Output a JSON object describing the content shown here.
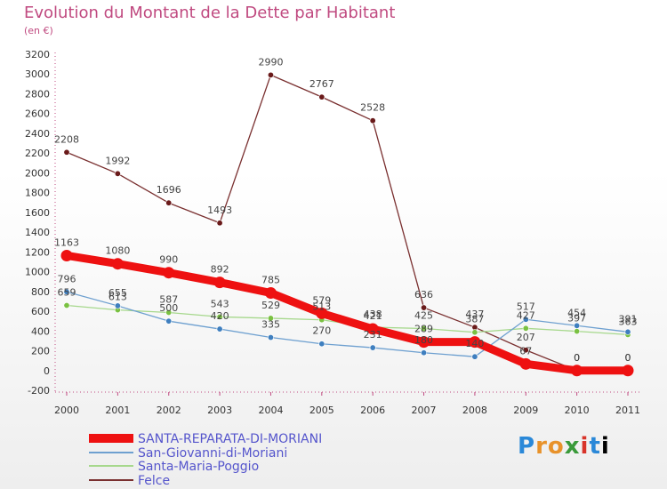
{
  "chart_data": {
    "type": "line",
    "title": "Evolution du Montant de la Dette par Habitant",
    "subtitle": "(en €)",
    "x": [
      "2000",
      "2001",
      "2002",
      "2003",
      "2004",
      "2005",
      "2006",
      "2007",
      "2008",
      "2009",
      "2010",
      "2011"
    ],
    "ylim": [
      -200,
      3200
    ],
    "yticks": [
      -200,
      0,
      200,
      400,
      600,
      800,
      1000,
      1200,
      1400,
      1600,
      1800,
      2000,
      2200,
      2400,
      2600,
      2800,
      3000,
      3200
    ],
    "grid": false,
    "legend_position": "bottom-left",
    "series": [
      {
        "name": "SANTA-REPARATA-DI-MORIANI",
        "color": "#ee1111",
        "point_color": "#ee1111",
        "values": [
          1163,
          1080,
          990,
          892,
          785,
          579,
          421,
          289,
          289,
          67,
          0,
          0
        ],
        "labels": [
          "1163",
          "1080",
          "990",
          "892",
          "785",
          "579",
          "421",
          "289",
          "",
          "67",
          "0",
          "0"
        ]
      },
      {
        "name": "San-Giovanni-di-Moriani",
        "color": "#6ea0d0",
        "point_color": "#3f7fbf",
        "values": [
          796,
          655,
          500,
          420,
          335,
          270,
          231,
          180,
          140,
          517,
          454,
          391
        ],
        "labels": [
          "796",
          "655",
          "500",
          "420",
          "335",
          "270",
          "231",
          "180",
          "140",
          "517",
          "454",
          "391"
        ]
      },
      {
        "name": "Santa-Maria-Poggio",
        "color": "#a6d88c",
        "point_color": "#7ac142",
        "values": [
          659,
          613,
          587,
          543,
          529,
          513,
          438,
          425,
          387,
          427,
          397,
          363
        ],
        "labels": [
          "659",
          "613",
          "587",
          "543",
          "529",
          "513",
          "438",
          "425",
          "387",
          "427",
          "397",
          "363"
        ]
      },
      {
        "name": "Felce",
        "color": "#7a3030",
        "point_color": "#6a1a1a",
        "values": [
          2208,
          1992,
          1696,
          1493,
          2990,
          2767,
          2528,
          636,
          437,
          207,
          0,
          0
        ],
        "labels": [
          "2208",
          "1992",
          "1696",
          "1493",
          "2990",
          "2767",
          "2528",
          "636",
          "437",
          "207",
          "0",
          "0"
        ]
      }
    ]
  },
  "logo_letters": [
    "P",
    "r",
    "o",
    "x",
    "i",
    "t",
    "i"
  ]
}
